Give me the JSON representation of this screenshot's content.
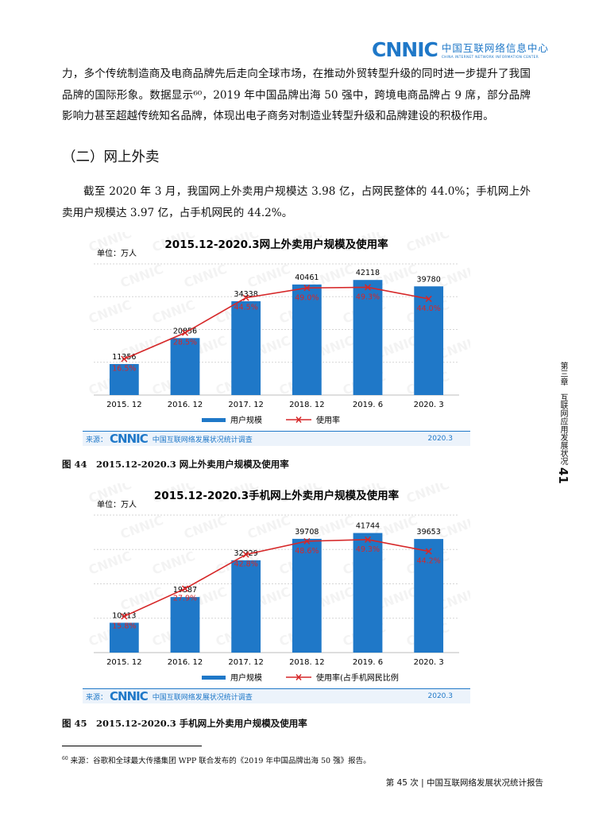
{
  "header": {
    "logo_mark": "CNNIC",
    "logo_cn": "中国互联网络信息中心",
    "logo_en": "CHINA INTERNET NETWORK INFORMATION CENTER"
  },
  "intro_paragraph": "力，多个传统制造商及电商品牌先后走向全球市场，在推动外贸转型升级的同时进一步提升了我国品牌的国际形象。数据显示⁶⁰，2019 年中国品牌出海 50 强中，跨境电商品牌占 9 席，部分品牌影响力甚至超越传统知名品牌，体现出电子商务对制造业转型升级和品牌建设的积极作用。",
  "section_heading": "（二）网上外卖",
  "section_paragraph": "截至 2020 年 3 月，我国网上外卖用户规模达 3.98 亿，占网民整体的 44.0%；手机网上外卖用户规模达 3.97 亿，占手机网民的 44.2%。",
  "charts": [
    {
      "unit_label": "单位：万人",
      "source_label": "来源：",
      "source_mark": "CNNIC",
      "source_name": "中国互联网络发展状况统计调查",
      "source_date": "2020.3",
      "caption": "图 44　2015.12-2020.3 网上外卖用户规模及使用率"
    },
    {
      "unit_label": "单位：万人",
      "source_label": "来源：",
      "source_mark": "CNNIC",
      "source_name": "中国互联网络发展状况统计调查",
      "source_date": "2020.3",
      "caption": "图 45　2015.12-2020.3 手机网上外卖用户规模及使用率"
    }
  ],
  "chart_data": [
    {
      "type": "bar",
      "title": "2015.12-2020.3网上外卖用户规模及使用率",
      "categories": [
        "2015. 12",
        "2016. 12",
        "2017. 12",
        "2018. 12",
        "2019. 6",
        "2020. 3"
      ],
      "series": [
        {
          "name": "用户规模",
          "type": "bar",
          "values": [
            11356,
            20856,
            34338,
            40461,
            42118,
            39780
          ],
          "labels": [
            "11356",
            "20856",
            "34338",
            "40461",
            "42118",
            "39780"
          ],
          "color": "#1f78c8"
        },
        {
          "name": "使用率",
          "type": "line",
          "values": [
            16.5,
            28.5,
            44.5,
            49.0,
            49.3,
            44.0
          ],
          "labels": [
            "16.5%",
            "28.5%",
            "44.5%",
            "49.0%",
            "49.3%",
            "44.0%"
          ],
          "color": "#d62728"
        }
      ],
      "bar_ylim": [
        0,
        48000
      ],
      "line_ylim": [
        0,
        60
      ],
      "legend_position": "bottom"
    },
    {
      "type": "bar",
      "title": "2015.12-2020.3手机网上外卖用户规模及使用率",
      "categories": [
        "2015. 12",
        "2016. 12",
        "2017. 12",
        "2018. 12",
        "2019. 6",
        "2020. 3"
      ],
      "series": [
        {
          "name": "用户规模",
          "type": "bar",
          "values": [
            10413,
            19387,
            32229,
            39708,
            41744,
            39653
          ],
          "labels": [
            "10413",
            "19387",
            "32229",
            "39708",
            "41744",
            "39653"
          ],
          "color": "#1f78c8"
        },
        {
          "name": "使用率(占手机网民比例",
          "type": "line",
          "values": [
            15.8,
            27.9,
            42.8,
            48.6,
            49.3,
            44.2
          ],
          "labels": [
            "15.8%",
            "27.9%",
            "42.8%",
            "48.6%",
            "49.3%",
            "44.2%"
          ],
          "color": "#d62728"
        }
      ],
      "bar_ylim": [
        0,
        48000
      ],
      "line_ylim": [
        0,
        60
      ],
      "legend_position": "bottom"
    }
  ],
  "footnote": {
    "number": "60",
    "text": "来源：谷歌和全球最大传播集团 WPP 联合发布的《2019 年中国品牌出海 50 强》报告。"
  },
  "page_footer": "第 45 次 | 中国互联网络发展状况统计报告",
  "sidebar_text": "第三章　互联网应用发展状况",
  "side_page_number": "41"
}
